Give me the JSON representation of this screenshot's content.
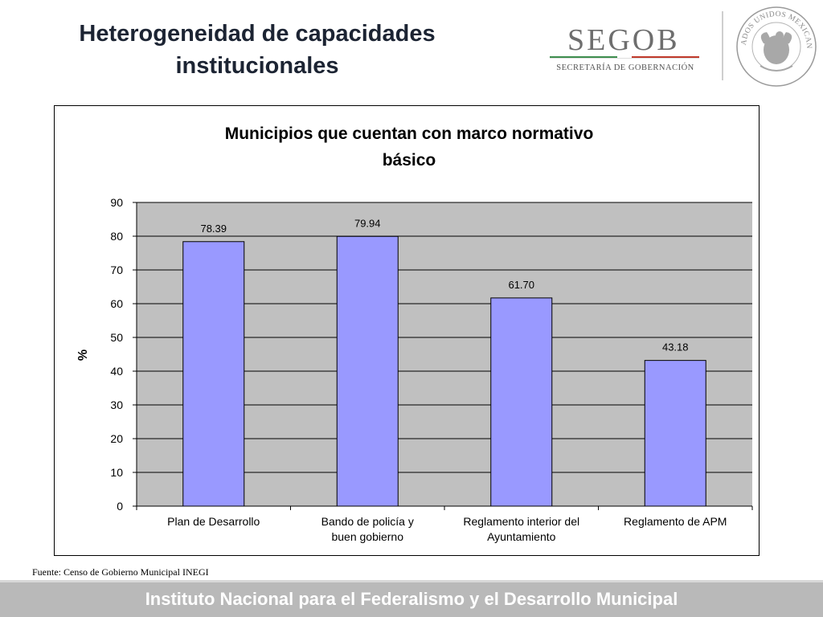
{
  "slide": {
    "title_line1": "Heterogeneidad de capacidades",
    "title_line2": "institucionales",
    "logo_name": "SEGOB",
    "logo_subtitle": "SECRETARÍA DE GOBERNACIÓN",
    "seal_text": "ESTADOS UNIDOS MEXICANOS",
    "source_note": "Fuente: Censo de Gobierno Municipal INEGI",
    "footer": "Instituto Nacional para el Federalismo y el Desarrollo Municipal"
  },
  "colors": {
    "bar_fill": "#9999ff",
    "plot_background": "#c0c0c0",
    "footer_background": "#b9b9b9",
    "logo_stripe_green": "#3e8e4e",
    "logo_stripe_red": "#c0392b"
  },
  "chart_data": {
    "type": "bar",
    "title_lines": [
      "Municipios que cuentan con marco normativo",
      "básico"
    ],
    "ylabel": "%",
    "xlabel": "",
    "ylim": [
      0,
      90
    ],
    "yticks": [
      0,
      10,
      20,
      30,
      40,
      50,
      60,
      70,
      80,
      90
    ],
    "grid": true,
    "legend": "none",
    "categories": [
      [
        "Plan de Desarrollo"
      ],
      [
        "Bando de policía y",
        "buen gobierno"
      ],
      [
        "Reglamento interior del",
        "Ayuntamiento"
      ],
      [
        "Reglamento de APM"
      ]
    ],
    "values": [
      78.39,
      79.94,
      61.7,
      43.18
    ],
    "data_labels": [
      "78.39",
      "79.94",
      "61.70",
      "43.18"
    ]
  }
}
